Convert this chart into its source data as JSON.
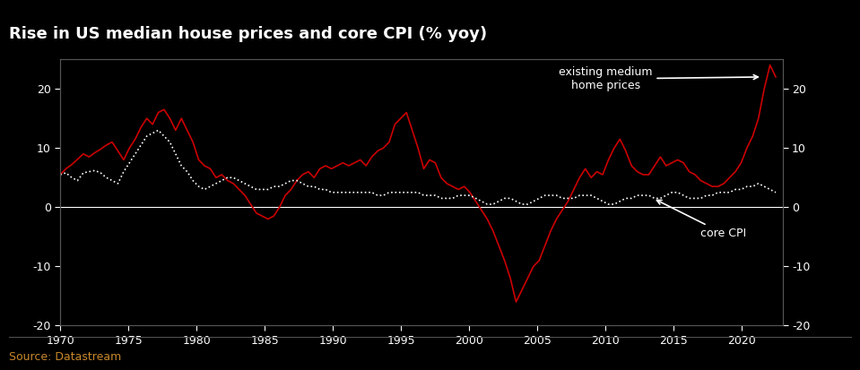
{
  "title": "Rise in US median house prices and core CPI (% yoy)",
  "source": "Source: Datastream",
  "background_color": "#000000",
  "title_color": "#ffffff",
  "source_color": "#c8882a",
  "title_bar_color": "#cc0000",
  "ylim": [
    -20,
    25
  ],
  "yticks": [
    -20,
    -10,
    0,
    10,
    20
  ],
  "xlim_start": 1970,
  "xlim_end": 2023,
  "xticks": [
    1970,
    1975,
    1980,
    1985,
    1990,
    1995,
    2000,
    2005,
    2010,
    2015,
    2020
  ],
  "house_color": "#cc0000",
  "cpi_color": "#ffffff",
  "annotation1_text": "existing medium\nhome prices",
  "annotation2_text": "core CPI",
  "house_prices": [
    5.5,
    6.5,
    7.2,
    8.1,
    9.0,
    8.5,
    9.2,
    9.8,
    10.5,
    11.0,
    9.5,
    8.0,
    10.0,
    11.5,
    13.5,
    15.0,
    14.0,
    16.0,
    16.5,
    15.0,
    13.0,
    15.0,
    13.0,
    11.0,
    8.0,
    7.0,
    6.5,
    5.0,
    5.5,
    4.5,
    4.0,
    3.0,
    2.0,
    0.5,
    -1.0,
    -1.5,
    -2.0,
    -1.5,
    0.0,
    2.0,
    3.0,
    4.5,
    5.5,
    6.0,
    5.0,
    6.5,
    7.0,
    6.5,
    7.0,
    7.5,
    7.0,
    7.5,
    8.0,
    7.0,
    8.5,
    9.5,
    10.0,
    11.0,
    14.0,
    15.0,
    16.0,
    13.0,
    10.0,
    6.5,
    8.0,
    7.5,
    5.0,
    4.0,
    3.5,
    3.0,
    3.5,
    2.5,
    1.0,
    -0.5,
    -2.0,
    -4.0,
    -6.5,
    -9.0,
    -12.0,
    -16.0,
    -14.0,
    -12.0,
    -10.0,
    -9.0,
    -6.5,
    -4.0,
    -2.0,
    -0.5,
    1.0,
    3.0,
    5.0,
    6.5,
    5.0,
    6.0,
    5.5,
    8.0,
    10.0,
    11.5,
    9.5,
    7.0,
    6.0,
    5.5,
    5.5,
    7.0,
    8.5,
    7.0,
    7.5,
    8.0,
    7.5,
    6.0,
    5.5,
    4.5,
    4.0,
    3.5,
    3.5,
    4.0,
    5.0,
    6.0,
    7.5,
    10.0,
    12.0,
    15.0,
    20.0,
    24.0,
    22.0
  ],
  "cpi_prices": [
    5.5,
    5.8,
    5.0,
    4.5,
    5.8,
    6.0,
    6.2,
    5.8,
    5.0,
    4.5,
    4.0,
    6.0,
    7.5,
    9.0,
    10.5,
    12.0,
    12.5,
    13.0,
    12.0,
    11.0,
    9.0,
    7.0,
    6.0,
    4.5,
    3.5,
    3.0,
    3.5,
    4.0,
    4.5,
    5.0,
    5.0,
    4.5,
    4.0,
    3.5,
    3.0,
    3.0,
    3.0,
    3.5,
    3.5,
    4.0,
    4.5,
    4.5,
    4.0,
    3.5,
    3.5,
    3.0,
    3.0,
    2.5,
    2.5,
    2.5,
    2.5,
    2.5,
    2.5,
    2.5,
    2.5,
    2.0,
    2.0,
    2.5,
    2.5,
    2.5,
    2.5,
    2.5,
    2.5,
    2.0,
    2.0,
    2.0,
    1.5,
    1.5,
    1.5,
    2.0,
    2.0,
    2.0,
    1.5,
    1.0,
    0.5,
    0.5,
    1.0,
    1.5,
    1.5,
    1.0,
    0.5,
    0.5,
    1.0,
    1.5,
    2.0,
    2.0,
    2.0,
    1.5,
    1.5,
    1.5,
    2.0,
    2.0,
    2.0,
    1.5,
    1.0,
    0.5,
    0.5,
    1.0,
    1.5,
    1.5,
    2.0,
    2.0,
    2.0,
    1.5,
    1.5,
    2.0,
    2.5,
    2.5,
    2.0,
    1.5,
    1.5,
    1.5,
    2.0,
    2.0,
    2.5,
    2.5,
    2.5,
    3.0,
    3.0,
    3.5,
    3.5,
    4.0,
    3.5,
    3.0,
    2.5
  ]
}
